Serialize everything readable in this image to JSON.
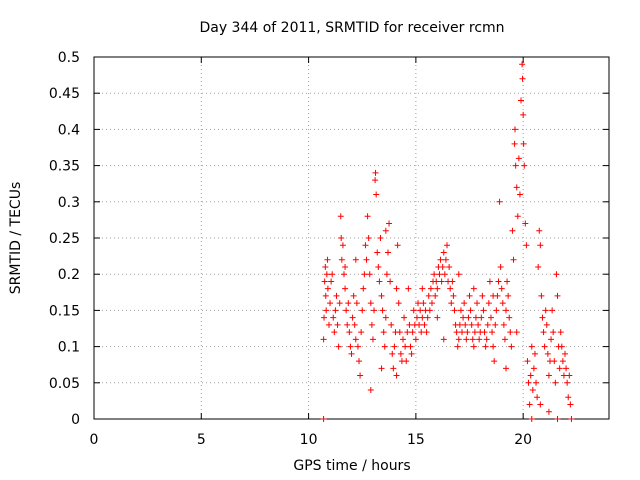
{
  "chart_data": {
    "type": "scatter",
    "title": "Day 344 of 2011, SRMTID for receiver rcmn",
    "xlabel": "GPS time / hours",
    "ylabel": "SRMTID / TECUs",
    "xlim": [
      0,
      24
    ],
    "ylim": [
      0,
      0.5
    ],
    "xticks": [
      {
        "value": 0,
        "label": "0"
      },
      {
        "value": 5,
        "label": "5"
      },
      {
        "value": 10,
        "label": "10"
      },
      {
        "value": 15,
        "label": "15"
      },
      {
        "value": 20,
        "label": "20"
      }
    ],
    "yticks": [
      {
        "value": 0,
        "label": "0"
      },
      {
        "value": 0.05,
        "label": "0.05"
      },
      {
        "value": 0.1,
        "label": "0.1"
      },
      {
        "value": 0.15,
        "label": "0.15"
      },
      {
        "value": 0.2,
        "label": "0.2"
      },
      {
        "value": 0.25,
        "label": "0.25"
      },
      {
        "value": 0.3,
        "label": "0.3"
      },
      {
        "value": 0.35,
        "label": "0.35"
      },
      {
        "value": 0.4,
        "label": "0.4"
      },
      {
        "value": 0.45,
        "label": "0.45"
      },
      {
        "value": 0.5,
        "label": "0.5"
      }
    ],
    "grid": true,
    "marker": "+",
    "series": [
      {
        "name": "SRMTID",
        "color": "#ff0000",
        "points": [
          [
            10.7,
            0.0
          ],
          [
            10.7,
            0.11
          ],
          [
            10.72,
            0.14
          ],
          [
            10.75,
            0.19
          ],
          [
            10.78,
            0.21
          ],
          [
            10.8,
            0.17
          ],
          [
            10.82,
            0.15
          ],
          [
            10.85,
            0.2
          ],
          [
            10.88,
            0.22
          ],
          [
            10.9,
            0.18
          ],
          [
            10.95,
            0.13
          ],
          [
            11.0,
            0.16
          ],
          [
            11.05,
            0.19
          ],
          [
            11.1,
            0.2
          ],
          [
            11.15,
            0.14
          ],
          [
            11.2,
            0.12
          ],
          [
            11.25,
            0.15
          ],
          [
            11.3,
            0.17
          ],
          [
            11.35,
            0.13
          ],
          [
            11.4,
            0.1
          ],
          [
            11.45,
            0.16
          ],
          [
            11.5,
            0.28
          ],
          [
            11.52,
            0.25
          ],
          [
            11.55,
            0.22
          ],
          [
            11.6,
            0.24
          ],
          [
            11.65,
            0.2
          ],
          [
            11.7,
            0.18
          ],
          [
            11.75,
            0.15
          ],
          [
            11.8,
            0.13
          ],
          [
            11.85,
            0.16
          ],
          [
            11.9,
            0.12
          ],
          [
            11.95,
            0.1
          ],
          [
            12.0,
            0.09
          ],
          [
            12.05,
            0.14
          ],
          [
            12.1,
            0.17
          ],
          [
            12.15,
            0.13
          ],
          [
            12.2,
            0.11
          ],
          [
            12.25,
            0.16
          ],
          [
            12.3,
            0.1
          ],
          [
            12.35,
            0.08
          ],
          [
            12.4,
            0.06
          ],
          [
            12.45,
            0.12
          ],
          [
            12.5,
            0.15
          ],
          [
            12.55,
            0.18
          ],
          [
            12.6,
            0.2
          ],
          [
            12.65,
            0.24
          ],
          [
            12.7,
            0.22
          ],
          [
            12.75,
            0.28
          ],
          [
            12.8,
            0.25
          ],
          [
            12.85,
            0.2
          ],
          [
            12.9,
            0.16
          ],
          [
            12.95,
            0.13
          ],
          [
            13.0,
            0.11
          ],
          [
            13.05,
            0.15
          ],
          [
            13.1,
            0.33
          ],
          [
            13.12,
            0.34
          ],
          [
            13.15,
            0.31
          ],
          [
            13.2,
            0.23
          ],
          [
            13.25,
            0.21
          ],
          [
            13.3,
            0.19
          ],
          [
            13.35,
            0.25
          ],
          [
            13.4,
            0.17
          ],
          [
            13.45,
            0.15
          ],
          [
            13.5,
            0.12
          ],
          [
            13.55,
            0.1
          ],
          [
            13.6,
            0.14
          ],
          [
            13.65,
            0.2
          ],
          [
            13.7,
            0.23
          ],
          [
            13.75,
            0.27
          ],
          [
            13.8,
            0.19
          ],
          [
            13.85,
            0.13
          ],
          [
            13.9,
            0.09
          ],
          [
            13.95,
            0.07
          ],
          [
            14.0,
            0.1
          ],
          [
            14.05,
            0.12
          ],
          [
            14.1,
            0.18
          ],
          [
            14.15,
            0.24
          ],
          [
            14.2,
            0.16
          ],
          [
            14.25,
            0.12
          ],
          [
            14.3,
            0.09
          ],
          [
            14.35,
            0.08
          ],
          [
            14.4,
            0.11
          ],
          [
            14.45,
            0.14
          ],
          [
            14.5,
            0.1
          ],
          [
            14.55,
            0.08
          ],
          [
            14.6,
            0.12
          ],
          [
            14.65,
            0.18
          ],
          [
            14.7,
            0.13
          ],
          [
            14.75,
            0.1
          ],
          [
            14.8,
            0.09
          ],
          [
            14.85,
            0.12
          ],
          [
            14.9,
            0.15
          ],
          [
            14.95,
            0.13
          ],
          [
            15.0,
            0.11
          ],
          [
            15.05,
            0.14
          ],
          [
            15.1,
            0.16
          ],
          [
            15.15,
            0.13
          ],
          [
            15.2,
            0.15
          ],
          [
            15.25,
            0.12
          ],
          [
            15.3,
            0.14
          ],
          [
            15.35,
            0.16
          ],
          [
            15.4,
            0.13
          ],
          [
            15.45,
            0.15
          ],
          [
            15.5,
            0.12
          ],
          [
            15.55,
            0.14
          ],
          [
            15.6,
            0.17
          ],
          [
            15.65,
            0.15
          ],
          [
            15.7,
            0.18
          ],
          [
            15.75,
            0.16
          ],
          [
            15.8,
            0.19
          ],
          [
            15.85,
            0.2
          ],
          [
            15.9,
            0.17
          ],
          [
            15.95,
            0.19
          ],
          [
            16.0,
            0.18
          ],
          [
            16.05,
            0.21
          ],
          [
            16.1,
            0.2
          ],
          [
            16.15,
            0.22
          ],
          [
            16.2,
            0.19
          ],
          [
            16.25,
            0.21
          ],
          [
            16.3,
            0.23
          ],
          [
            16.35,
            0.2
          ],
          [
            16.4,
            0.22
          ],
          [
            16.45,
            0.24
          ],
          [
            16.5,
            0.19
          ],
          [
            16.55,
            0.21
          ],
          [
            16.6,
            0.18
          ],
          [
            16.65,
            0.16
          ],
          [
            16.7,
            0.19
          ],
          [
            16.75,
            0.17
          ],
          [
            16.8,
            0.15
          ],
          [
            16.85,
            0.13
          ],
          [
            16.9,
            0.12
          ],
          [
            16.95,
            0.1
          ],
          [
            17.0,
            0.11
          ],
          [
            17.05,
            0.13
          ],
          [
            17.1,
            0.15
          ],
          [
            17.15,
            0.12
          ],
          [
            17.2,
            0.14
          ],
          [
            17.25,
            0.16
          ],
          [
            17.3,
            0.13
          ],
          [
            17.35,
            0.11
          ],
          [
            17.4,
            0.12
          ],
          [
            17.45,
            0.14
          ],
          [
            17.5,
            0.17
          ],
          [
            17.55,
            0.15
          ],
          [
            17.6,
            0.13
          ],
          [
            17.65,
            0.11
          ],
          [
            17.7,
            0.1
          ],
          [
            17.75,
            0.12
          ],
          [
            17.8,
            0.14
          ],
          [
            17.85,
            0.16
          ],
          [
            17.9,
            0.13
          ],
          [
            17.95,
            0.11
          ],
          [
            18.0,
            0.12
          ],
          [
            18.05,
            0.14
          ],
          [
            18.1,
            0.17
          ],
          [
            18.15,
            0.15
          ],
          [
            18.2,
            0.12
          ],
          [
            18.25,
            0.1
          ],
          [
            18.3,
            0.11
          ],
          [
            18.35,
            0.13
          ],
          [
            18.4,
            0.16
          ],
          [
            18.45,
            0.19
          ],
          [
            18.5,
            0.14
          ],
          [
            18.55,
            0.12
          ],
          [
            18.6,
            0.1
          ],
          [
            18.65,
            0.08
          ],
          [
            18.7,
            0.13
          ],
          [
            18.75,
            0.15
          ],
          [
            18.8,
            0.17
          ],
          [
            18.85,
            0.19
          ],
          [
            18.9,
            0.3
          ],
          [
            18.95,
            0.21
          ],
          [
            19.0,
            0.18
          ],
          [
            19.05,
            0.16
          ],
          [
            19.1,
            0.13
          ],
          [
            19.15,
            0.11
          ],
          [
            19.2,
            0.15
          ],
          [
            19.25,
            0.19
          ],
          [
            19.3,
            0.17
          ],
          [
            19.35,
            0.14
          ],
          [
            19.4,
            0.12
          ],
          [
            19.45,
            0.1
          ],
          [
            19.5,
            0.26
          ],
          [
            19.55,
            0.22
          ],
          [
            19.6,
            0.38
          ],
          [
            19.62,
            0.4
          ],
          [
            19.65,
            0.35
          ],
          [
            19.7,
            0.32
          ],
          [
            19.75,
            0.28
          ],
          [
            19.8,
            0.36
          ],
          [
            19.85,
            0.31
          ],
          [
            19.9,
            0.44
          ],
          [
            19.95,
            0.49
          ],
          [
            19.97,
            0.47
          ],
          [
            20.0,
            0.42
          ],
          [
            20.02,
            0.38
          ],
          [
            20.05,
            0.35
          ],
          [
            20.1,
            0.27
          ],
          [
            20.15,
            0.24
          ],
          [
            20.2,
            0.08
          ],
          [
            20.25,
            0.05
          ],
          [
            20.3,
            0.02
          ],
          [
            20.35,
            0.06
          ],
          [
            20.4,
            0.1
          ],
          [
            20.45,
            0.04
          ],
          [
            20.5,
            0.07
          ],
          [
            20.55,
            0.09
          ],
          [
            20.6,
            0.05
          ],
          [
            20.65,
            0.03
          ],
          [
            20.7,
            0.21
          ],
          [
            20.75,
            0.26
          ],
          [
            20.8,
            0.24
          ],
          [
            20.85,
            0.17
          ],
          [
            20.9,
            0.14
          ],
          [
            20.95,
            0.12
          ],
          [
            21.0,
            0.1
          ],
          [
            21.05,
            0.15
          ],
          [
            21.1,
            0.13
          ],
          [
            21.15,
            0.09
          ],
          [
            21.2,
            0.06
          ],
          [
            21.25,
            0.08
          ],
          [
            21.3,
            0.11
          ],
          [
            21.35,
            0.15
          ],
          [
            21.4,
            0.12
          ],
          [
            21.45,
            0.08
          ],
          [
            21.5,
            0.05
          ],
          [
            21.55,
            0.2
          ],
          [
            21.6,
            0.17
          ],
          [
            21.65,
            0.1
          ],
          [
            21.7,
            0.07
          ],
          [
            21.75,
            0.12
          ],
          [
            21.8,
            0.1
          ],
          [
            21.85,
            0.08
          ],
          [
            21.9,
            0.06
          ],
          [
            21.95,
            0.09
          ],
          [
            22.0,
            0.07
          ],
          [
            22.05,
            0.05
          ],
          [
            22.1,
            0.03
          ],
          [
            22.15,
            0.06
          ],
          [
            22.2,
            0.02
          ],
          [
            22.25,
            0.0
          ],
          [
            12.9,
            0.04
          ],
          [
            13.4,
            0.07
          ],
          [
            16.0,
            0.14
          ],
          [
            17.0,
            0.2
          ],
          [
            18.6,
            0.17
          ],
          [
            15.3,
            0.18
          ],
          [
            14.1,
            0.06
          ],
          [
            11.7,
            0.21
          ],
          [
            20.8,
            0.02
          ],
          [
            21.2,
            0.01
          ],
          [
            20.4,
            0.0
          ],
          [
            21.6,
            0.0
          ],
          [
            19.2,
            0.07
          ],
          [
            19.7,
            0.12
          ],
          [
            12.2,
            0.22
          ],
          [
            13.6,
            0.26
          ],
          [
            16.3,
            0.11
          ],
          [
            17.7,
            0.18
          ]
        ]
      }
    ]
  }
}
